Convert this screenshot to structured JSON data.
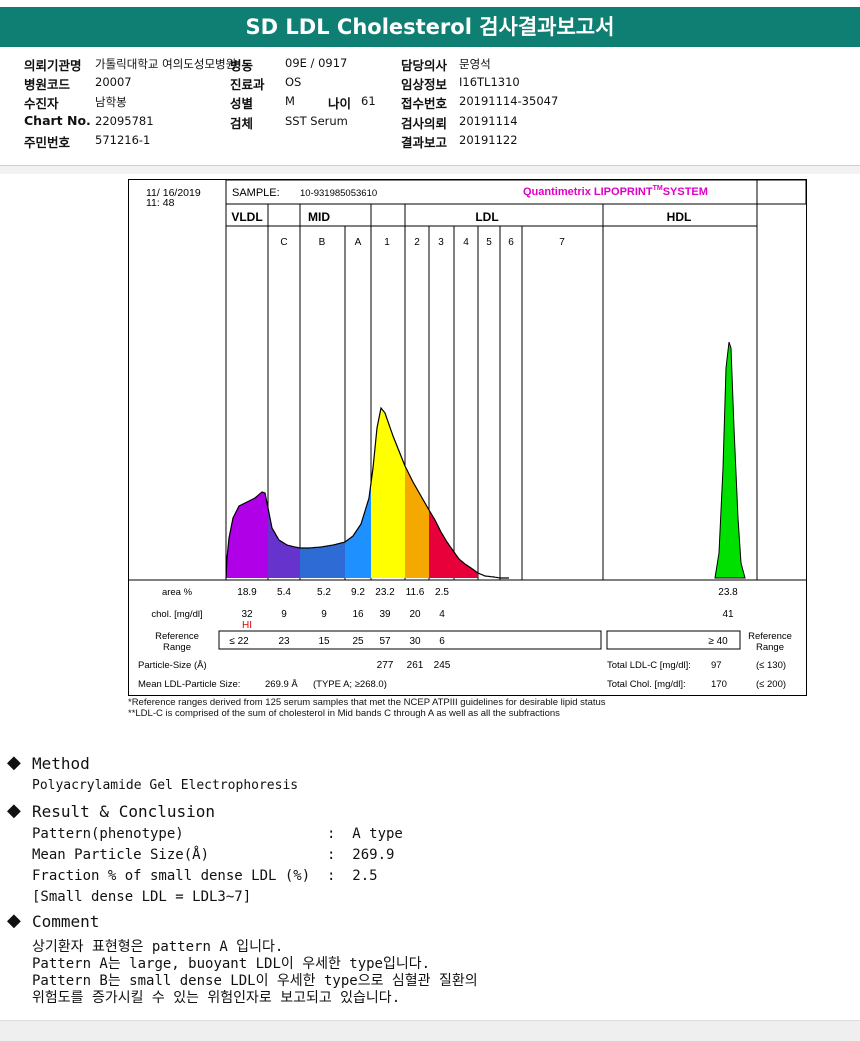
{
  "title": "SD LDL Cholesterol 검사결과보고서",
  "info": {
    "rows": [
      [
        {
          "l": "의뢰기관명",
          "v": "가톨릭대학교 여의도성모병원"
        },
        {
          "l": "병동",
          "v": "09E / 0917"
        },
        {
          "l": "담당의사",
          "v": "문영석"
        }
      ],
      [
        {
          "l": "병원코드",
          "v": "20007"
        },
        {
          "l": "진료과",
          "v": "OS"
        },
        {
          "l": "임상정보",
          "v": "I16TL1310"
        }
      ],
      [
        {
          "l": "수진자",
          "v": "남학봉"
        },
        {
          "l": "성별",
          "v": "M"
        },
        {
          "l": "접수번호",
          "v": "20191114-35047"
        }
      ],
      [
        {
          "l": "Chart No.",
          "v": "22095781"
        },
        {
          "l": "검체",
          "v": "SST Serum"
        },
        {
          "l": "검사의뢰",
          "v": "20191114"
        }
      ],
      [
        {
          "l": "주민번호",
          "v": "571216-1"
        },
        {
          "l": "",
          "v": ""
        },
        {
          "l": "결과보고",
          "v": "20191122"
        }
      ]
    ],
    "age_label": "나이",
    "age_value": "61"
  },
  "report": {
    "date": "11/ 16/2019",
    "time": "11: 48",
    "sample_label": "SAMPLE:",
    "sample_value": "10-931985053610",
    "system_pre": "Quantimetrix LIPOPRINT",
    "system_tm": "TM",
    "system_post": "SYSTEM",
    "groups": [
      "VLDL",
      "MID",
      "LDL",
      "HDL"
    ],
    "bands": [
      "C",
      "B",
      "A",
      "1",
      "2",
      "3",
      "4",
      "5",
      "6",
      "7"
    ],
    "row_labels": {
      "area": "area %",
      "chol": "chol. [mg/dl]",
      "ref1": "Reference",
      "ref2": "Range",
      "particle": "Particle-Size (Å)",
      "mean": "Mean LDL-Particle Size:"
    },
    "area_values": [
      "18.9",
      "5.4",
      "5.2",
      "9.2",
      "23.2",
      "11.6",
      "2.5",
      "23.8"
    ],
    "chol_values": [
      "32",
      "9",
      "9",
      "16",
      "39",
      "20",
      "4",
      "41"
    ],
    "hi_flag": "HI",
    "ref_values": [
      "≤ 22",
      "23",
      "15",
      "25",
      "57",
      "30",
      "6",
      "≥ 40"
    ],
    "ref_right1": "Reference",
    "ref_right2": "Range",
    "particle_values": [
      "277",
      "261",
      "245"
    ],
    "mean_value": "269.9 Å",
    "mean_type": "(TYPE A; ≥268.0)",
    "total_ldl_label": "Total LDL-C [mg/dl]:",
    "total_ldl_value": "97",
    "total_ldl_ref": "(≤ 130)",
    "total_chol_label": "Total Chol. [mg/dl]:",
    "total_chol_value": "170",
    "total_chol_ref": "(≤ 200)"
  },
  "footnotes": [
    "*Reference ranges derived from 125 serum samples that met the NCEP ATPIII guidelines for desirable lipid status",
    "**LDL-C is comprised of the sum of cholesterol in Mid bands C through A as well as all the subfractions"
  ],
  "method": {
    "title": "Method",
    "text": "Polyacrylamide Gel Electrophoresis"
  },
  "result": {
    "title": "Result & Conclusion",
    "lines": [
      "Pattern(phenotype)                 :  A type",
      "Mean Particle Size(Å)              :  269.9",
      "Fraction % of small dense LDL (%)  :  2.5",
      "[Small dense LDL = LDL3~7]"
    ]
  },
  "comment": {
    "title": "Comment",
    "lines": [
      "상기환자 표현형은 pattern A 입니다.",
      "Pattern A는 large, buoyant LDL이 우세한 type입니다.",
      "Pattern B는 small dense LDL이 우세한 type으로 심혈관 질환의",
      "위험도를 증가시킬 수 있는 위험인자로 보고되고 있습니다."
    ]
  },
  "colors": {
    "header": "#0e7f72",
    "vldl": "#b000e8",
    "mid_c": "#6633cc",
    "mid_b": "#2e6bd4",
    "mid_a": "#1e90ff",
    "ldl1": "#ffff00",
    "ldl2": "#f5a800",
    "ldl3": "#e8003a",
    "hdl": "#00e000",
    "system": "#e000c8"
  },
  "chart_data": {
    "type": "area",
    "title": "",
    "xlabel": "",
    "ylabel": "",
    "bands": [
      "VLDL",
      "C",
      "B",
      "A",
      "1",
      "2",
      "3",
      "4",
      "5",
      "6",
      "7",
      "HDL"
    ],
    "area_percent": [
      18.9,
      5.4,
      5.2,
      9.2,
      23.2,
      11.6,
      2.5,
      0,
      0,
      0,
      0,
      23.8
    ],
    "chol_mg_dl": [
      32,
      9,
      9,
      16,
      39,
      20,
      4,
      0,
      0,
      0,
      0,
      41
    ]
  }
}
